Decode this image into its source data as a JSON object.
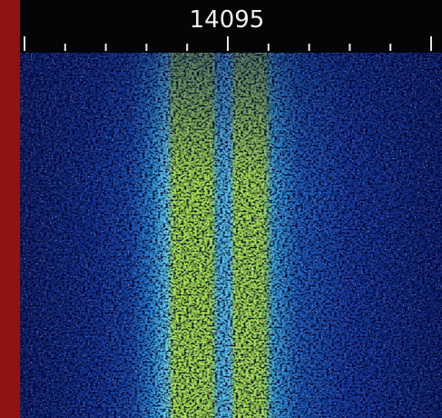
{
  "header": {
    "frequency": "14095"
  }
}
